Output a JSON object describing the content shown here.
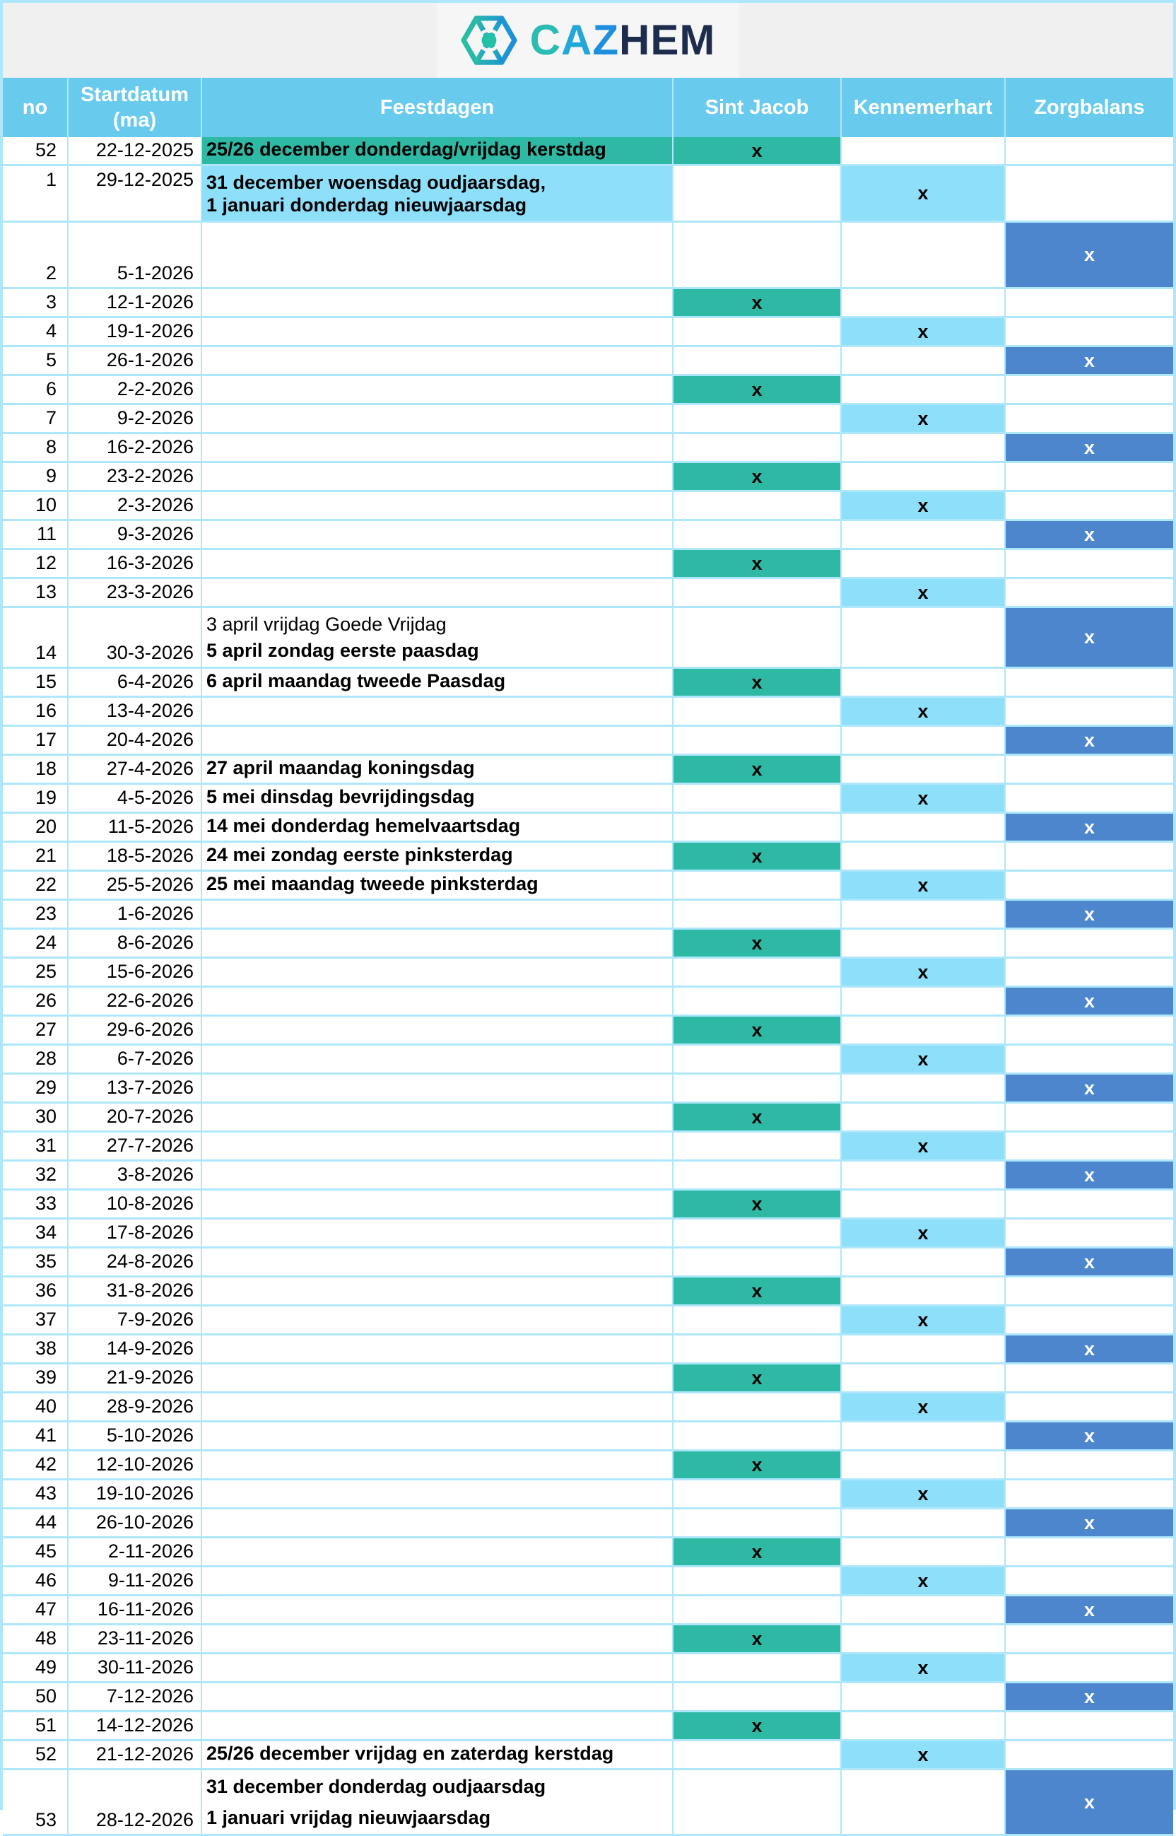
{
  "logo": {
    "caz_letters": [
      "C",
      "A",
      "Z"
    ],
    "hem": "HEM",
    "icon": "hexagon-wheel-icon"
  },
  "colors": {
    "teal": "#2EB9A4",
    "light_blue": "#8EDFFA",
    "blue": "#4E86CD",
    "header_blue": "#68CBEE",
    "border_blue": "#AEE7FB",
    "band_gray": "#F0F0F0",
    "navy": "#1D2B4D"
  },
  "table": {
    "mark": "x",
    "columns": {
      "no": {
        "label": "no"
      },
      "startdatum": {
        "lines": [
          "Startdatum",
          "(ma)"
        ]
      },
      "feestdagen": {
        "label": "Feestdagen"
      },
      "sint_jacob": {
        "label": "Sint Jacob"
      },
      "kennemerhart": {
        "label": "Kennemerhart"
      },
      "zorgbalans": {
        "label": "Zorgbalans"
      }
    },
    "rows": [
      {
        "no": "52",
        "date": "22-12-2025",
        "feest": [
          {
            "text": "25/26 december donderdag/vrijdag kerstdag",
            "bold": true
          }
        ],
        "feest_fill": "teal",
        "mark": "sj"
      },
      {
        "no": "1",
        "date": "29-12-2025",
        "feest": [
          {
            "text": "31 december woensdag oudjaarsdag,",
            "bold": true
          },
          {
            "text": "1 januari donderdag nieuwjaarsdag",
            "bold": true
          }
        ],
        "feest_fill": "light",
        "mark": "kh",
        "tall": 80,
        "valign": "top"
      },
      {
        "no": "2",
        "date": "5-1-2026",
        "feest": [],
        "mark": "zb",
        "tall": 94
      },
      {
        "no": "3",
        "date": "12-1-2026",
        "feest": [],
        "mark": "sj"
      },
      {
        "no": "4",
        "date": "19-1-2026",
        "feest": [],
        "mark": "kh"
      },
      {
        "no": "5",
        "date": "26-1-2026",
        "feest": [],
        "mark": "zb"
      },
      {
        "no": "6",
        "date": "2-2-2026",
        "feest": [],
        "mark": "sj"
      },
      {
        "no": "7",
        "date": "9-2-2026",
        "feest": [],
        "mark": "kh"
      },
      {
        "no": "8",
        "date": "16-2-2026",
        "feest": [],
        "mark": "zb"
      },
      {
        "no": "9",
        "date": "23-2-2026",
        "feest": [],
        "mark": "sj"
      },
      {
        "no": "10",
        "date": "2-3-2026",
        "feest": [],
        "mark": "kh"
      },
      {
        "no": "11",
        "date": "9-3-2026",
        "feest": [],
        "mark": "zb"
      },
      {
        "no": "12",
        "date": "16-3-2026",
        "feest": [],
        "mark": "sj"
      },
      {
        "no": "13",
        "date": "23-3-2026",
        "feest": [],
        "mark": "kh"
      },
      {
        "no": "14",
        "date": "30-3-2026",
        "feest": [
          {
            "text": "3 april vrijdag Goede Vrijdag",
            "bold": false
          },
          {
            "text": "5 april zondag eerste paasdag",
            "bold": true
          }
        ],
        "mark": "zb",
        "tall": 86
      },
      {
        "no": "15",
        "date": "6-4-2026",
        "feest": [
          {
            "text": "6 april maandag tweede Paasdag",
            "bold": true
          }
        ],
        "mark": "sj"
      },
      {
        "no": "16",
        "date": "13-4-2026",
        "feest": [],
        "mark": "kh"
      },
      {
        "no": "17",
        "date": "20-4-2026",
        "feest": [],
        "mark": "zb"
      },
      {
        "no": "18",
        "date": "27-4-2026",
        "feest": [
          {
            "text": "27 april maandag koningsdag",
            "bold": true
          }
        ],
        "mark": "sj"
      },
      {
        "no": "19",
        "date": "4-5-2026",
        "feest": [
          {
            "text": "5 mei dinsdag bevrijdingsdag",
            "bold": true
          }
        ],
        "mark": "kh"
      },
      {
        "no": "20",
        "date": "11-5-2026",
        "feest": [
          {
            "text": "14 mei donderdag hemelvaartsdag",
            "bold": true
          }
        ],
        "mark": "zb"
      },
      {
        "no": "21",
        "date": "18-5-2026",
        "feest": [
          {
            "text": "24 mei zondag eerste pinksterdag",
            "bold": true
          }
        ],
        "mark": "sj"
      },
      {
        "no": "22",
        "date": "25-5-2026",
        "feest": [
          {
            "text": "25 mei maandag tweede pinksterdag",
            "bold": true
          }
        ],
        "mark": "kh"
      },
      {
        "no": "23",
        "date": "1-6-2026",
        "feest": [],
        "mark": "zb"
      },
      {
        "no": "24",
        "date": "8-6-2026",
        "feest": [],
        "mark": "sj"
      },
      {
        "no": "25",
        "date": "15-6-2026",
        "feest": [],
        "mark": "kh"
      },
      {
        "no": "26",
        "date": "22-6-2026",
        "feest": [],
        "mark": "zb"
      },
      {
        "no": "27",
        "date": "29-6-2026",
        "feest": [],
        "mark": "sj"
      },
      {
        "no": "28",
        "date": "6-7-2026",
        "feest": [],
        "mark": "kh"
      },
      {
        "no": "29",
        "date": "13-7-2026",
        "feest": [],
        "mark": "zb"
      },
      {
        "no": "30",
        "date": "20-7-2026",
        "feest": [],
        "mark": "sj"
      },
      {
        "no": "31",
        "date": "27-7-2026",
        "feest": [],
        "mark": "kh"
      },
      {
        "no": "32",
        "date": "3-8-2026",
        "feest": [],
        "mark": "zb"
      },
      {
        "no": "33",
        "date": "10-8-2026",
        "feest": [],
        "mark": "sj"
      },
      {
        "no": "34",
        "date": "17-8-2026",
        "feest": [],
        "mark": "kh"
      },
      {
        "no": "35",
        "date": "24-8-2026",
        "feest": [],
        "mark": "zb"
      },
      {
        "no": "36",
        "date": "31-8-2026",
        "feest": [],
        "mark": "sj"
      },
      {
        "no": "37",
        "date": "7-9-2026",
        "feest": [],
        "mark": "kh"
      },
      {
        "no": "38",
        "date": "14-9-2026",
        "feest": [],
        "mark": "zb"
      },
      {
        "no": "39",
        "date": "21-9-2026",
        "feest": [],
        "mark": "sj"
      },
      {
        "no": "40",
        "date": "28-9-2026",
        "feest": [],
        "mark": "kh"
      },
      {
        "no": "41",
        "date": "5-10-2026",
        "feest": [],
        "mark": "zb"
      },
      {
        "no": "42",
        "date": "12-10-2026",
        "feest": [],
        "mark": "sj"
      },
      {
        "no": "43",
        "date": "19-10-2026",
        "feest": [],
        "mark": "kh"
      },
      {
        "no": "44",
        "date": "26-10-2026",
        "feest": [],
        "mark": "zb"
      },
      {
        "no": "45",
        "date": "2-11-2026",
        "feest": [],
        "mark": "sj"
      },
      {
        "no": "46",
        "date": "9-11-2026",
        "feest": [],
        "mark": "kh"
      },
      {
        "no": "47",
        "date": "16-11-2026",
        "feest": [],
        "mark": "zb"
      },
      {
        "no": "48",
        "date": "23-11-2026",
        "feest": [],
        "mark": "sj"
      },
      {
        "no": "49",
        "date": "30-11-2026",
        "feest": [],
        "mark": "kh"
      },
      {
        "no": "50",
        "date": "7-12-2026",
        "feest": [],
        "mark": "zb"
      },
      {
        "no": "51",
        "date": "14-12-2026",
        "feest": [],
        "mark": "sj"
      },
      {
        "no": "52",
        "date": "21-12-2026",
        "feest": [
          {
            "text": "25/26 december vrijdag en zaterdag kerstdag",
            "bold": true
          }
        ],
        "mark": "kh"
      },
      {
        "no": "53",
        "date": "28-12-2026",
        "feest": [
          {
            "text": "31 december donderdag oudjaarsdag",
            "bold": true
          },
          {
            "text": " 1 januari vrijdag nieuwjaarsdag",
            "bold": true
          }
        ],
        "mark": "zb",
        "tall": 93
      }
    ]
  }
}
